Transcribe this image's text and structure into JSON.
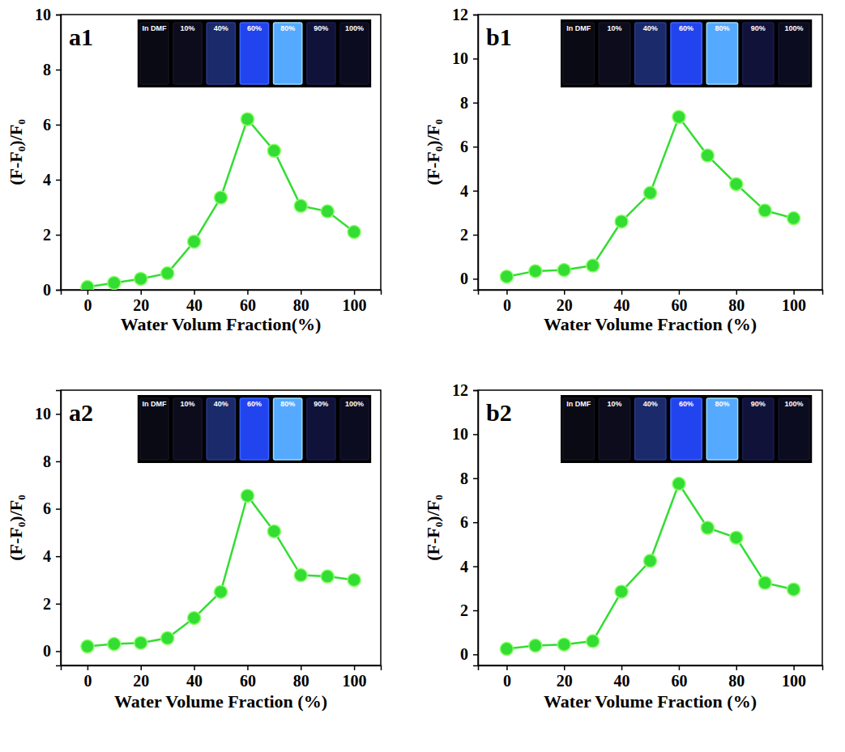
{
  "chart_data": [
    {
      "type": "line",
      "title": "a1",
      "annotations": [
        "In DMF",
        "10%",
        "40%",
        "60%",
        "80%",
        "90%",
        "100%"
      ],
      "x_label": "Water Volum Fraction(%)",
      "y_label": "(F-F₀)/F₀",
      "x": [
        0,
        10,
        20,
        30,
        40,
        50,
        60,
        70,
        80,
        90,
        100
      ],
      "xlim": [
        -10,
        110
      ],
      "xticks": [
        0,
        20,
        40,
        60,
        80,
        100
      ],
      "ylim": [
        0,
        10
      ],
      "yticks": [
        0,
        2,
        4,
        6,
        8,
        10
      ],
      "series": [
        {
          "color": "#33dd33",
          "marker": "circle",
          "values": [
            0.1,
            0.25,
            0.4,
            0.6,
            1.75,
            3.35,
            6.2,
            5.05,
            3.05,
            2.85,
            2.1
          ]
        }
      ]
    },
    {
      "type": "line",
      "title": "b1",
      "annotations": [
        "In DMF",
        "10%",
        "40%",
        "60%",
        "80%",
        "90%",
        "100%"
      ],
      "x_label": "Water Volume Fraction (%)",
      "y_label": "(F-F₀)/F₀",
      "x": [
        0,
        10,
        20,
        30,
        40,
        50,
        60,
        70,
        80,
        90,
        100
      ],
      "xlim": [
        -10,
        110
      ],
      "xticks": [
        0,
        20,
        40,
        60,
        80,
        100
      ],
      "ylim": [
        -0.5,
        12
      ],
      "yticks": [
        0,
        2,
        4,
        6,
        8,
        10,
        12
      ],
      "series": [
        {
          "color": "#33dd33",
          "marker": "circle",
          "values": [
            0.1,
            0.35,
            0.4,
            0.6,
            2.6,
            3.9,
            7.35,
            5.6,
            4.3,
            3.1,
            2.75
          ]
        }
      ]
    },
    {
      "type": "line",
      "title": "a2",
      "annotations": [
        "In DMF",
        "10%",
        "40%",
        "60%",
        "80%",
        "90%",
        "100%"
      ],
      "x_label": "Water Volume Fraction (%)",
      "y_label": "(F-F₀)/F₀",
      "x": [
        0,
        10,
        20,
        30,
        40,
        50,
        60,
        70,
        80,
        90,
        100
      ],
      "xlim": [
        -10,
        110
      ],
      "xticks": [
        0,
        20,
        40,
        60,
        80,
        100
      ],
      "ylim": [
        -0.6,
        11
      ],
      "yticks": [
        0,
        2,
        4,
        6,
        8,
        10
      ],
      "series": [
        {
          "color": "#33dd33",
          "marker": "circle",
          "values": [
            0.2,
            0.3,
            0.35,
            0.55,
            1.4,
            2.5,
            6.55,
            5.05,
            3.2,
            3.15,
            3.0
          ]
        }
      ]
    },
    {
      "type": "line",
      "title": "b2",
      "annotations": [
        "In DMF",
        "10%",
        "40%",
        "60%",
        "80%",
        "90%",
        "100%"
      ],
      "x_label": "Water Volume Fraction (%)",
      "y_label": "(F-F₀)/F₀",
      "x": [
        0,
        10,
        20,
        30,
        40,
        50,
        60,
        70,
        80,
        90,
        100
      ],
      "xlim": [
        -10,
        110
      ],
      "xticks": [
        0,
        20,
        40,
        60,
        80,
        100
      ],
      "ylim": [
        -0.5,
        12
      ],
      "yticks": [
        0,
        2,
        4,
        6,
        8,
        10,
        12
      ],
      "series": [
        {
          "color": "#33dd33",
          "marker": "circle",
          "values": [
            0.25,
            0.4,
            0.45,
            0.6,
            2.85,
            4.25,
            7.75,
            5.75,
            5.3,
            3.25,
            2.95
          ]
        }
      ]
    }
  ]
}
